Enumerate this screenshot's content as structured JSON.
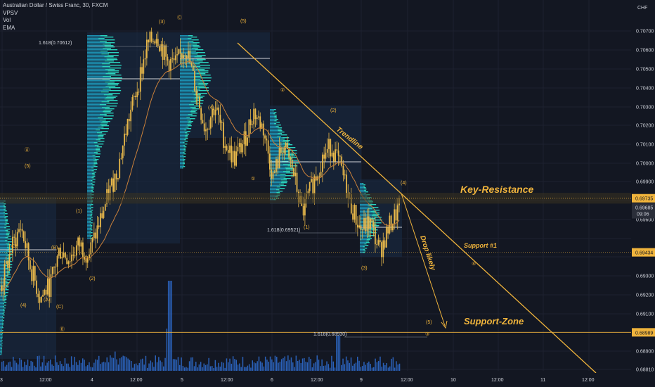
{
  "header": {
    "symbol_line": "Australian Dollar / Swiss Franc, 30, FXCM",
    "indicators": [
      "VPSV",
      "Vol",
      "EMA"
    ]
  },
  "currency_label": "CHF",
  "colors": {
    "background": "#131722",
    "grid": "#1e2230",
    "candle_up": "#e8b84a",
    "candle_down": "#e8b84a",
    "accent": "#f0b43c",
    "volume": "#2f6fd4",
    "vp_up": "#1c8fb0",
    "vp_down": "#2ad4c0",
    "vp_box": "#1a2c46",
    "ema": "#c9803a",
    "price_tag": "#f0b43c",
    "text": "#d1d4dc",
    "muted": "#8a8f9c"
  },
  "axis": {
    "y_ticks": [
      "0.70700",
      "0.70600",
      "0.70500",
      "0.70400",
      "0.70300",
      "0.70200",
      "0.70100",
      "0.70000",
      "0.69900",
      "0.69600",
      "0.69300",
      "0.69200",
      "0.69100",
      "0.68900",
      "0.68810"
    ],
    "x_ticks": [
      "3",
      "12:00",
      "4",
      "12:00",
      "5",
      "12:00",
      "6",
      "12:00",
      "9",
      "12:00",
      "10",
      "12:00",
      "11",
      "12:00"
    ]
  },
  "price_tags": {
    "key_resistance": "0.69735",
    "current_price": "0.69685",
    "countdown": "09:06",
    "support1": "0.69434",
    "support_zone": "0.68989"
  },
  "annotations": {
    "key_resistance": "Key-Resistance",
    "support1": "Support #1",
    "support_zone": "Support-Zone",
    "trendline": "Trendline",
    "drop_likely": "Drop likely",
    "fib1": "1.618(0.70612)",
    "fib2": "1.618(0.69521)",
    "fib3": "1.618(0.68930)"
  },
  "wave_labels": [
    "(3)",
    "Ⓒ",
    "(5)",
    "Ⓐ",
    "(5)",
    "(3)",
    "(4)",
    "(A)",
    "(C)",
    "(B)",
    "(1)",
    "(2)",
    "(1)",
    "Ⓑ",
    "(4)",
    "②",
    "(2)",
    "①",
    "(1)",
    "(3)",
    "(4)",
    "(5)",
    "③",
    "④"
  ],
  "chart_data": {
    "type": "candlestick",
    "instrument": "Australian Dollar / Swiss Franc",
    "timeframe": "30",
    "y_range": [
      0.6878,
      0.7077
    ],
    "levels": {
      "key_resistance": 0.69735,
      "support1": 0.69434,
      "support_zone": 0.68989
    },
    "close_path": [
      0.6925,
      0.6945,
      0.6958,
      0.6935,
      0.6918,
      0.6925,
      0.6945,
      0.694,
      0.6948,
      0.6942,
      0.6958,
      0.6975,
      0.699,
      0.7015,
      0.7035,
      0.7058,
      0.7065,
      0.705,
      0.7048,
      0.7058,
      0.7035,
      0.7012,
      0.7025,
      0.7005,
      0.6995,
      0.7005,
      0.7022,
      0.7012,
      0.6985,
      0.7003,
      0.699,
      0.6965,
      0.698,
      0.6995,
      0.7003,
      0.699,
      0.697,
      0.6956,
      0.696,
      0.6944,
      0.6958,
      0.6968
    ]
  }
}
